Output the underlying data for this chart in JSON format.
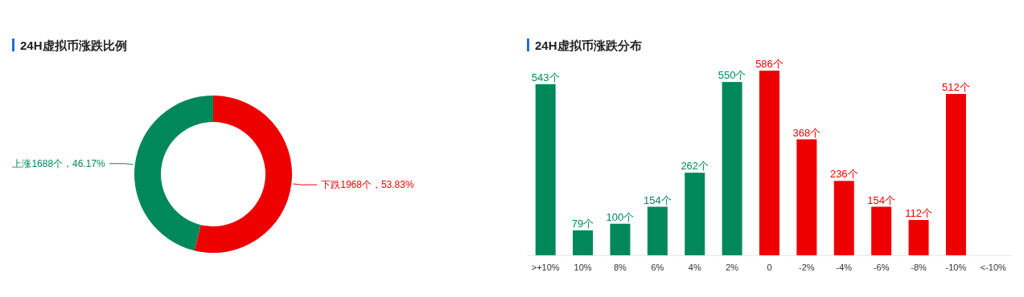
{
  "chart_data": [
    {
      "type": "donut",
      "title": "24H虚拟币涨跌比例",
      "categories": [
        "下跌",
        "上涨"
      ],
      "values": [
        1968,
        1688
      ],
      "value_labels": [
        "1968个，53.83%",
        "1688个，46.17%"
      ],
      "colors": [
        "#ee0000",
        "#00885a"
      ]
    },
    {
      "type": "bar",
      "title": "24H虚拟币涨跌分布",
      "categories": [
        ">+10%",
        "10%",
        "8%",
        "6%",
        "4%",
        "2%",
        "0",
        "-2%",
        "-4%",
        "-6%",
        "-8%",
        "-10%",
        "<-10%"
      ],
      "values": [
        543,
        79,
        100,
        154,
        262,
        550,
        586,
        368,
        236,
        154,
        112,
        512,
        null
      ],
      "value_labels": [
        "543个",
        "79个",
        "100个",
        "154个",
        "262个",
        "550个",
        "586个",
        "368个",
        "236个",
        "154个",
        "112个",
        "512个",
        null
      ],
      "colors": [
        "#00885a",
        "#00885a",
        "#00885a",
        "#00885a",
        "#00885a",
        "#00885a",
        "#ee0000",
        "#ee0000",
        "#ee0000",
        "#ee0000",
        "#ee0000",
        "#ee0000",
        null
      ]
    }
  ]
}
